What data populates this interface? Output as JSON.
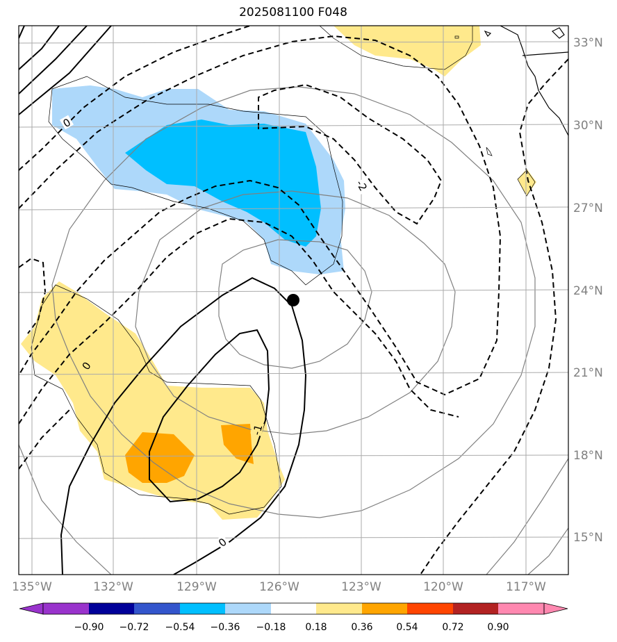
{
  "title": "2025081100 F048",
  "lon_ticks": [
    "135°W",
    "132°W",
    "129°W",
    "126°W",
    "123°W",
    "120°W",
    "117°W"
  ],
  "lat_ticks": [
    "33°N",
    "30°N",
    "27°N",
    "24°N",
    "21°N",
    "18°N",
    "15°N"
  ],
  "contour_labels": [
    "0",
    "0",
    "0",
    "-1",
    "-2"
  ],
  "colorbar": {
    "ticks": [
      "−0.90",
      "−0.72",
      "−0.54",
      "−0.36",
      "−0.18",
      "0.18",
      "0.36",
      "0.54",
      "0.72",
      "0.90"
    ],
    "colors": [
      "#9933cc",
      "#000099",
      "#3355cc",
      "#00bfff",
      "#add8fa",
      "#ffffff",
      "#ffe98c",
      "#ffa500",
      "#ff4500",
      "#b22222",
      "#ff88b0"
    ]
  },
  "colors": {
    "grid": "#aaaaaa",
    "gray_contour": "#808080",
    "pos_anomaly_light": "#ffe98c",
    "pos_anomaly_strong": "#ffa500",
    "neg_anomaly_light": "#add8fa",
    "neg_anomaly_strong": "#00bfff"
  },
  "center_marker": {
    "lon": -125.6,
    "lat": 23.7
  }
}
